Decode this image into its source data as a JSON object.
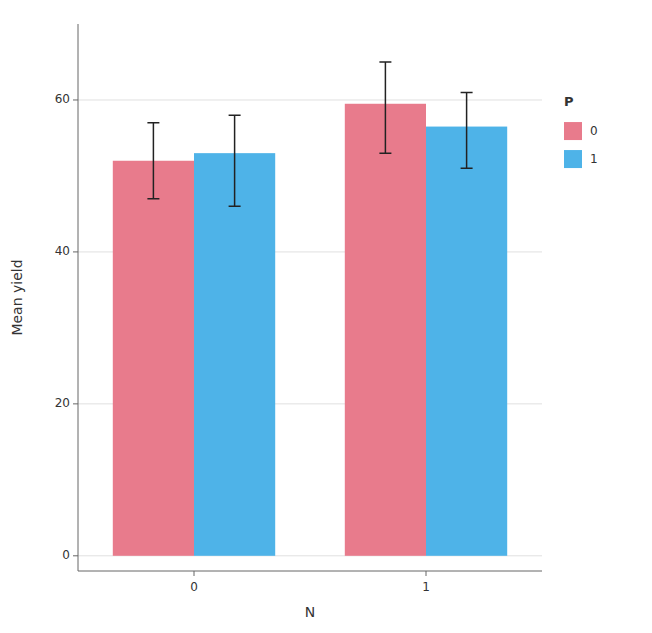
{
  "chart_data": {
    "type": "bar",
    "categories": [
      "0",
      "1"
    ],
    "series": [
      {
        "name": "0",
        "color": "#e87b8c",
        "values": [
          52.0,
          59.5
        ],
        "yerr_lower": [
          5.0,
          6.5
        ],
        "yerr_upper": [
          5.0,
          5.5
        ]
      },
      {
        "name": "1",
        "color": "#4eb3e8",
        "values": [
          53.0,
          56.5
        ],
        "yerr_lower": [
          7.0,
          5.5
        ],
        "yerr_upper": [
          5.0,
          4.5
        ]
      }
    ],
    "xlabel": "N",
    "ylabel": "Mean yield",
    "legend_title": "P",
    "ylim": [
      -2,
      70
    ],
    "yticks": [
      0,
      20,
      40,
      60
    ],
    "grid": true,
    "legend": "right"
  }
}
